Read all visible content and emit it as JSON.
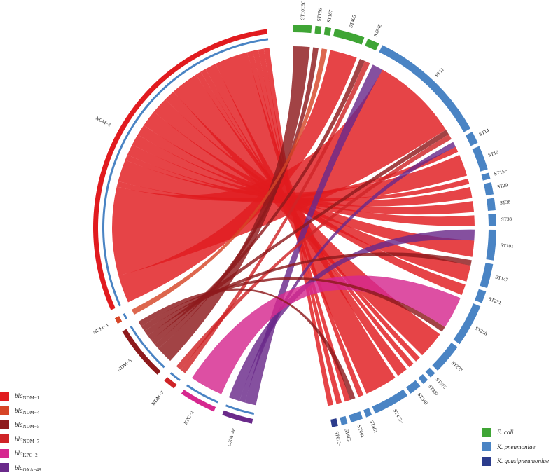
{
  "chart_data": {
    "type": "chord",
    "sources": [
      {
        "id": "NDM-1",
        "label": "NDM−1",
        "color": "#e11b1f",
        "legend_base": "bla",
        "legend_sub": "NDM−1"
      },
      {
        "id": "NDM-4",
        "label": "NDM−4",
        "color": "#d64527",
        "legend_base": "bla",
        "legend_sub": "NDM−4"
      },
      {
        "id": "NDM-5",
        "label": "NDM−5",
        "color": "#8e1a1c",
        "legend_base": "bla",
        "legend_sub": "NDM−5"
      },
      {
        "id": "NDM-7",
        "label": "NDM−7",
        "color": "#cf2427",
        "legend_base": "bla",
        "legend_sub": "NDM−7"
      },
      {
        "id": "KPC-2",
        "label": "KPC−2",
        "color": "#d6288f",
        "legend_base": "bla",
        "legend_sub": "KPC−2"
      },
      {
        "id": "OXA-48",
        "label": "OXA−48",
        "color": "#6a2a8a",
        "legend_base": "bla",
        "legend_sub": "OXA−48"
      }
    ],
    "species": [
      {
        "id": "ecoli",
        "label": "E. coli",
        "color": "#3fa535"
      },
      {
        "id": "kpneu",
        "label": "K. pneumoniae",
        "color": "#4a84c4"
      },
      {
        "id": "kquasi",
        "label": "K. quasipneumoniae",
        "color": "#2b3c8c"
      }
    ],
    "targets": [
      {
        "label": "ST101EC",
        "species": "ecoli",
        "value": 3
      },
      {
        "label": "ST156",
        "species": "ecoli",
        "value": 1
      },
      {
        "label": "ST167",
        "species": "ecoli",
        "value": 1
      },
      {
        "label": "ST405",
        "species": "ecoli",
        "value": 5
      },
      {
        "label": "ST648",
        "species": "ecoli",
        "value": 2
      },
      {
        "label": "ST11",
        "species": "kpneu",
        "value": 20
      },
      {
        "label": "ST14",
        "species": "kpneu",
        "value": 2
      },
      {
        "label": "ST15",
        "species": "kpneu",
        "value": 4
      },
      {
        "label": "ST15−",
        "species": "kpneu",
        "value": 1
      },
      {
        "label": "ST29",
        "species": "kpneu",
        "value": 2
      },
      {
        "label": "ST38",
        "species": "kpneu",
        "value": 2
      },
      {
        "label": "ST38−",
        "species": "kpneu",
        "value": 2
      },
      {
        "label": "ST101",
        "species": "kpneu",
        "value": 5
      },
      {
        "label": "ST147",
        "species": "kpneu",
        "value": 4
      },
      {
        "label": "ST231",
        "species": "kpneu",
        "value": 2
      },
      {
        "label": "ST258",
        "species": "kpneu",
        "value": 7
      },
      {
        "label": "ST273",
        "species": "kpneu",
        "value": 5
      },
      {
        "label": "ST278",
        "species": "kpneu",
        "value": 1
      },
      {
        "label": "ST307",
        "species": "kpneu",
        "value": 1
      },
      {
        "label": "ST340",
        "species": "kpneu",
        "value": 2
      },
      {
        "label": "ST423−",
        "species": "kpneu",
        "value": 6
      },
      {
        "label": "ST461",
        "species": "kpneu",
        "value": 1
      },
      {
        "label": "ST661",
        "species": "kpneu",
        "value": 2
      },
      {
        "label": "ST662",
        "species": "kpneu",
        "value": 1
      },
      {
        "label": "ST622−",
        "species": "kquasi",
        "value": 1
      }
    ],
    "links": [
      {
        "source": "NDM-5",
        "target": "ST101EC",
        "value": 3
      },
      {
        "source": "NDM-5",
        "target": "ST156",
        "value": 1
      },
      {
        "source": "NDM-4",
        "target": "ST167",
        "value": 1
      },
      {
        "source": "NDM-1",
        "target": "ST405",
        "value": 5
      },
      {
        "source": "NDM-5",
        "target": "ST648",
        "value": 1
      },
      {
        "source": "NDM-7",
        "target": "ST648",
        "value": 1
      },
      {
        "source": "OXA-48",
        "target": "ST11",
        "value": 2
      },
      {
        "source": "NDM-1",
        "target": "ST11",
        "value": 16
      },
      {
        "source": "NDM-5",
        "target": "ST11",
        "value": 1
      },
      {
        "source": "NDM-7",
        "target": "ST11",
        "value": 1
      },
      {
        "source": "OXA-48",
        "target": "ST14",
        "value": 1
      },
      {
        "source": "NDM-1",
        "target": "ST14",
        "value": 1
      },
      {
        "source": "NDM-1",
        "target": "ST15",
        "value": 4
      },
      {
        "source": "NDM-1",
        "target": "ST15−",
        "value": 1
      },
      {
        "source": "NDM-1",
        "target": "ST29",
        "value": 2
      },
      {
        "source": "NDM-1",
        "target": "ST38",
        "value": 2
      },
      {
        "source": "NDM-1",
        "target": "ST38−",
        "value": 2
      },
      {
        "source": "OXA-48",
        "target": "ST101",
        "value": 2
      },
      {
        "source": "NDM-1",
        "target": "ST101",
        "value": 3
      },
      {
        "source": "NDM-5",
        "target": "ST147",
        "value": 1
      },
      {
        "source": "NDM-1",
        "target": "ST147",
        "value": 3
      },
      {
        "source": "NDM-1",
        "target": "ST231",
        "value": 2
      },
      {
        "source": "KPC-2",
        "target": "ST258",
        "value": 6
      },
      {
        "source": "NDM-5",
        "target": "ST258",
        "value": 1
      },
      {
        "source": "NDM-1",
        "target": "ST273",
        "value": 5
      },
      {
        "source": "NDM-1",
        "target": "ST278",
        "value": 1
      },
      {
        "source": "NDM-1",
        "target": "ST307",
        "value": 1
      },
      {
        "source": "NDM-1",
        "target": "ST340",
        "value": 2
      },
      {
        "source": "NDM-1",
        "target": "ST423−",
        "value": 6
      },
      {
        "source": "NDM-1",
        "target": "ST461",
        "value": 1
      },
      {
        "source": "NDM-5",
        "target": "ST661",
        "value": 1
      },
      {
        "source": "NDM-1",
        "target": "ST661",
        "value": 1
      },
      {
        "source": "NDM-1",
        "target": "ST662",
        "value": 1
      },
      {
        "source": "NDM-1",
        "target": "ST622−",
        "value": 1
      }
    ]
  }
}
